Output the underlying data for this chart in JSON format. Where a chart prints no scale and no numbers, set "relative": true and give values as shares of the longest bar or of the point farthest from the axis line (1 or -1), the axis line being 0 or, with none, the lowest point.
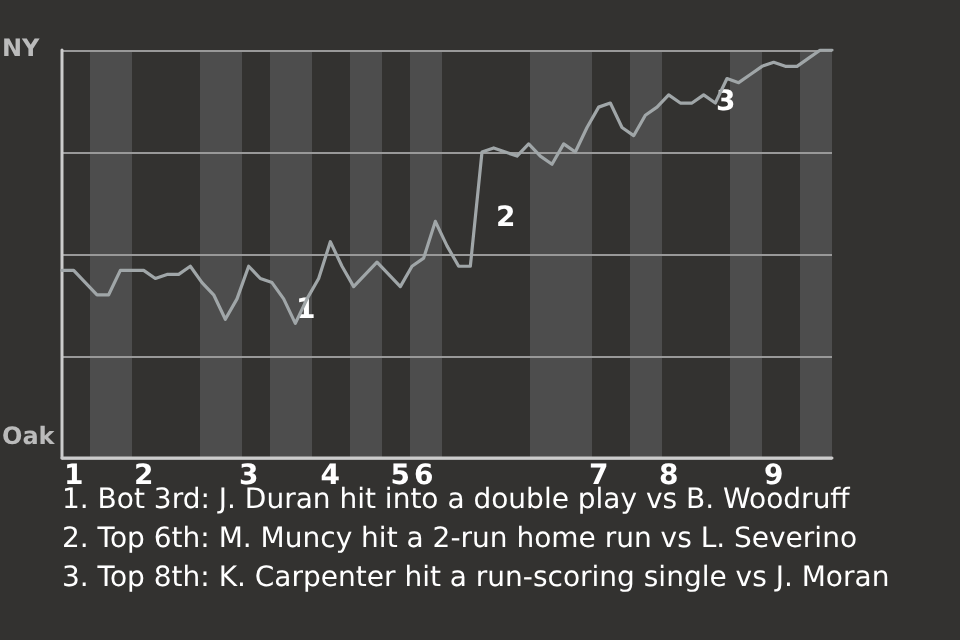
{
  "chart_data": {
    "type": "line",
    "relative": true,
    "categories": [
      null,
      "1",
      null,
      null,
      null,
      null,
      null,
      "2",
      null,
      null,
      null,
      null,
      null,
      null,
      null,
      null,
      "3",
      null,
      null,
      null,
      null,
      null,
      null,
      "4",
      null,
      null,
      null,
      null,
      null,
      "5",
      null,
      "6",
      null,
      null,
      null,
      null,
      null,
      null,
      null,
      null,
      null,
      null,
      null,
      null,
      null,
      null,
      "7",
      null,
      null,
      null,
      null,
      null,
      "8",
      null,
      null,
      null,
      null,
      null,
      null,
      null,
      null,
      "9",
      null,
      null,
      null,
      null,
      null
    ],
    "values": [
      0.46,
      0.46,
      0.43,
      0.4,
      0.4,
      0.46,
      0.46,
      0.46,
      0.44,
      0.45,
      0.45,
      0.47,
      0.43,
      0.4,
      0.34,
      0.39,
      0.47,
      0.44,
      0.43,
      0.39,
      0.33,
      0.39,
      0.44,
      0.53,
      0.47,
      0.42,
      0.45,
      0.48,
      0.45,
      0.42,
      0.47,
      0.49,
      0.58,
      0.52,
      0.47,
      0.47,
      0.75,
      0.76,
      0.75,
      0.74,
      0.77,
      0.74,
      0.72,
      0.77,
      0.75,
      0.81,
      0.86,
      0.87,
      0.81,
      0.79,
      0.84,
      0.86,
      0.89,
      0.87,
      0.87,
      0.89,
      0.87,
      0.93,
      0.92,
      0.94,
      0.96,
      0.97,
      0.96,
      0.96,
      0.98,
      1.0,
      1.0
    ],
    "color": "#a0a6a8",
    "grid": "y",
    "marker": "none",
    "line_style": "solid",
    "annotations": [
      "NY",
      "Oak",
      "1",
      "2",
      "3",
      "1. Bot 3rd: J. Duran hit into a double play vs B. Woodruff",
      "2. Top 6th: M. Muncy hit a 2-run home run vs L. Severino",
      "3. Top 8th: K. Carpenter hit a run-scoring single vs J. Moran"
    ]
  }
}
